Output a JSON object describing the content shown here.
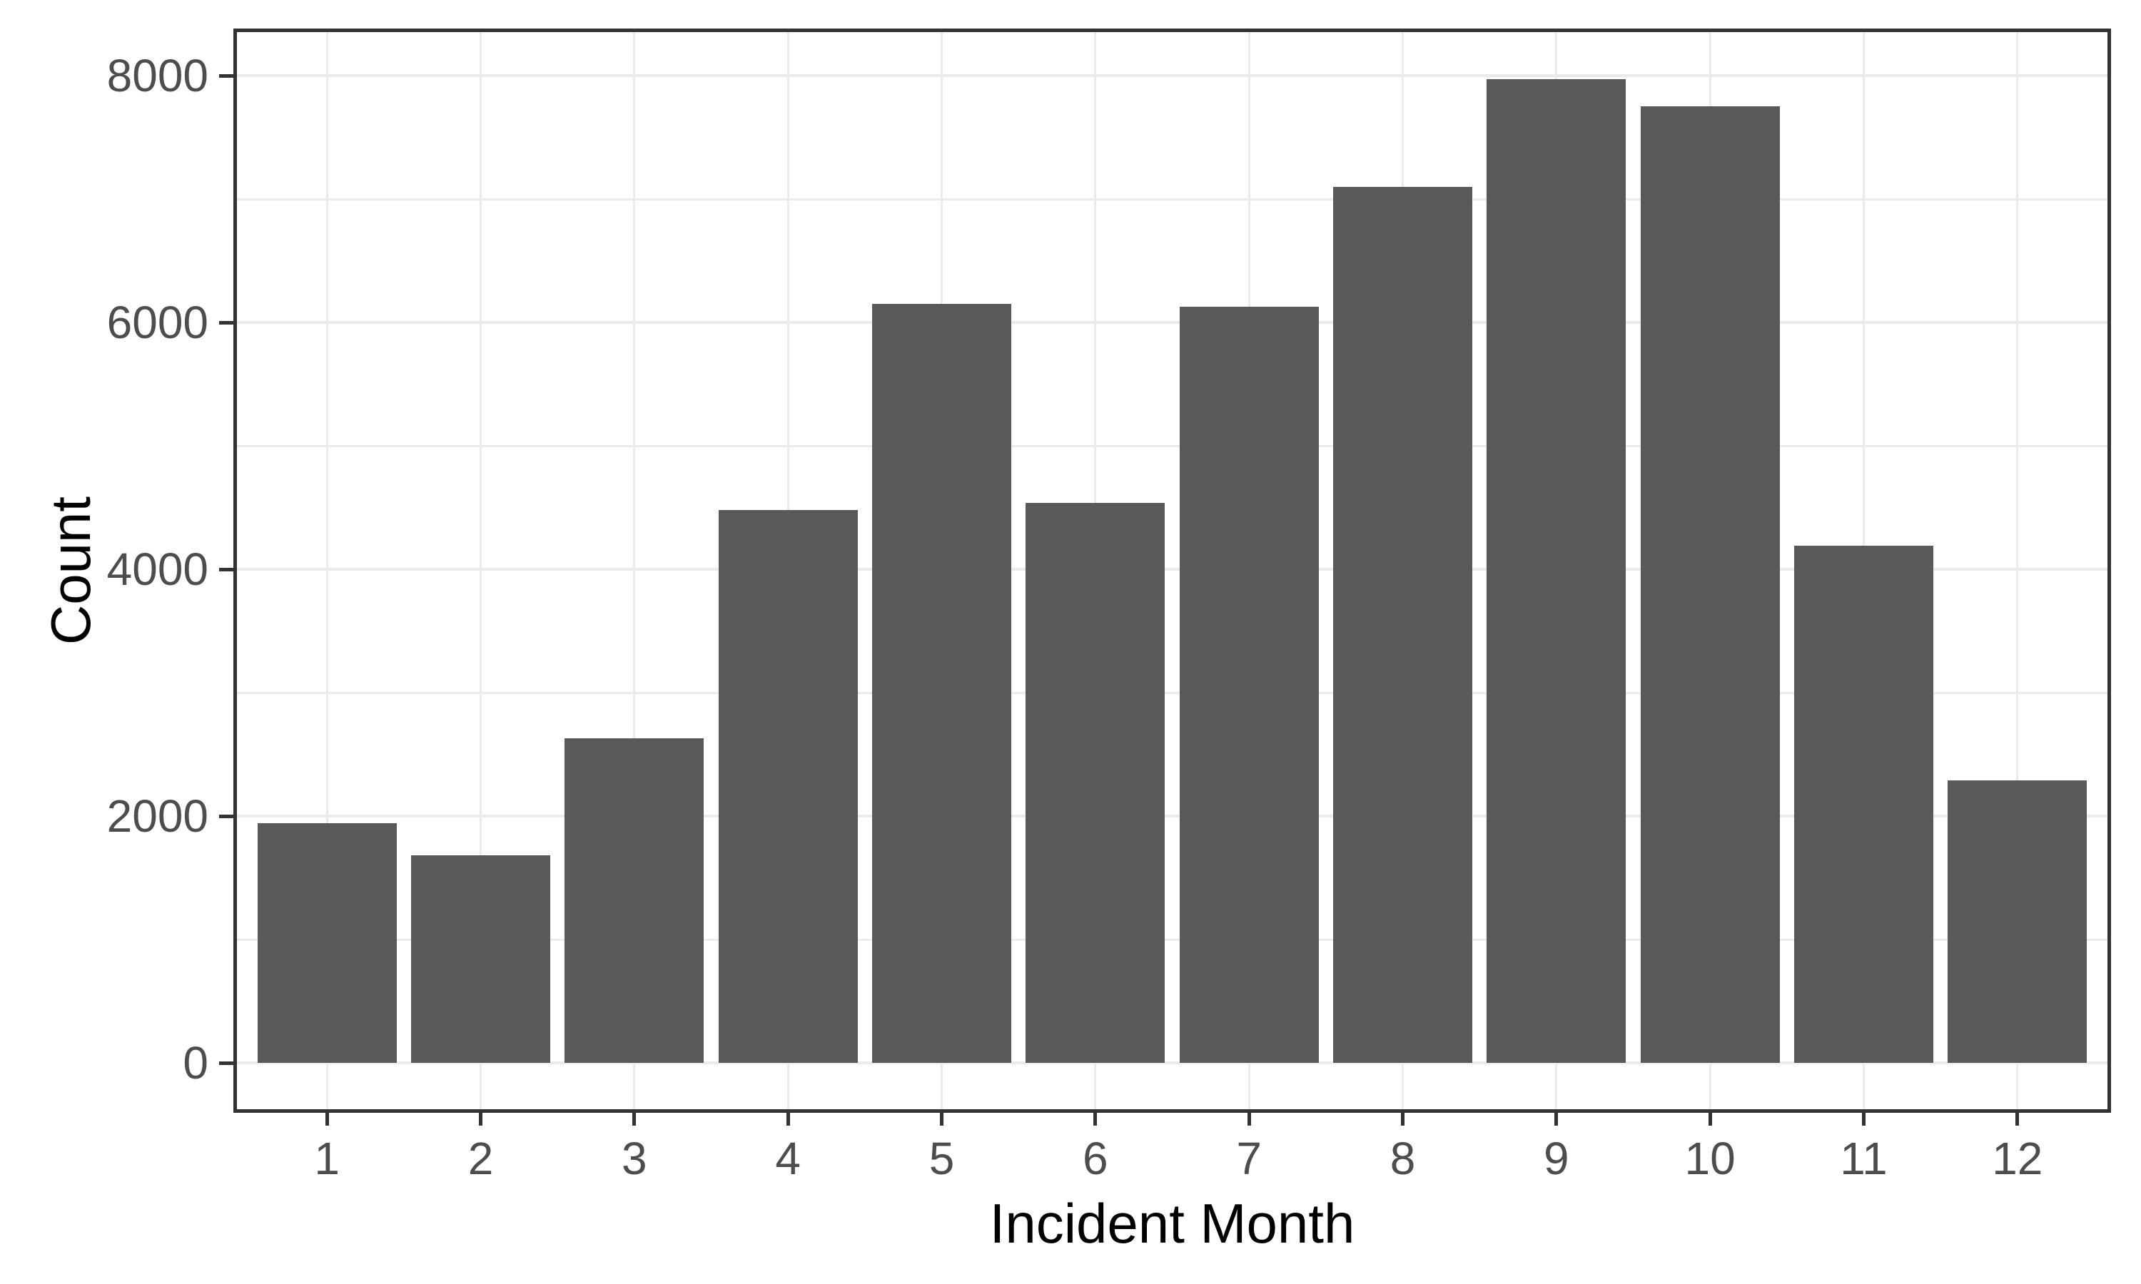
{
  "chart_data": {
    "type": "bar",
    "title": "",
    "xlabel": "Incident Month",
    "ylabel": "Count",
    "categories": [
      "1",
      "2",
      "3",
      "4",
      "5",
      "6",
      "7",
      "8",
      "9",
      "10",
      "11",
      "12"
    ],
    "values": [
      1940,
      1680,
      2630,
      4480,
      6150,
      4540,
      6130,
      7100,
      7970,
      7750,
      4190,
      2290
    ],
    "ylim": [
      0,
      8370
    ],
    "yticks": [
      0,
      2000,
      4000,
      6000,
      8000
    ],
    "ytick_labels": [
      "0",
      "2000",
      "4000",
      "6000",
      "8000"
    ],
    "minor_yticks": [
      1000,
      3000,
      5000,
      7000
    ],
    "grid": "on",
    "legend": "none",
    "bar_color": "#595959",
    "gridline_color": "#EBEBEB",
    "panel_border_color": "#333333",
    "tick_color": "#333333",
    "tick_label_color": "#4D4D4D",
    "axis_title_color": "#000000",
    "background_color": "#FFFFFF"
  }
}
